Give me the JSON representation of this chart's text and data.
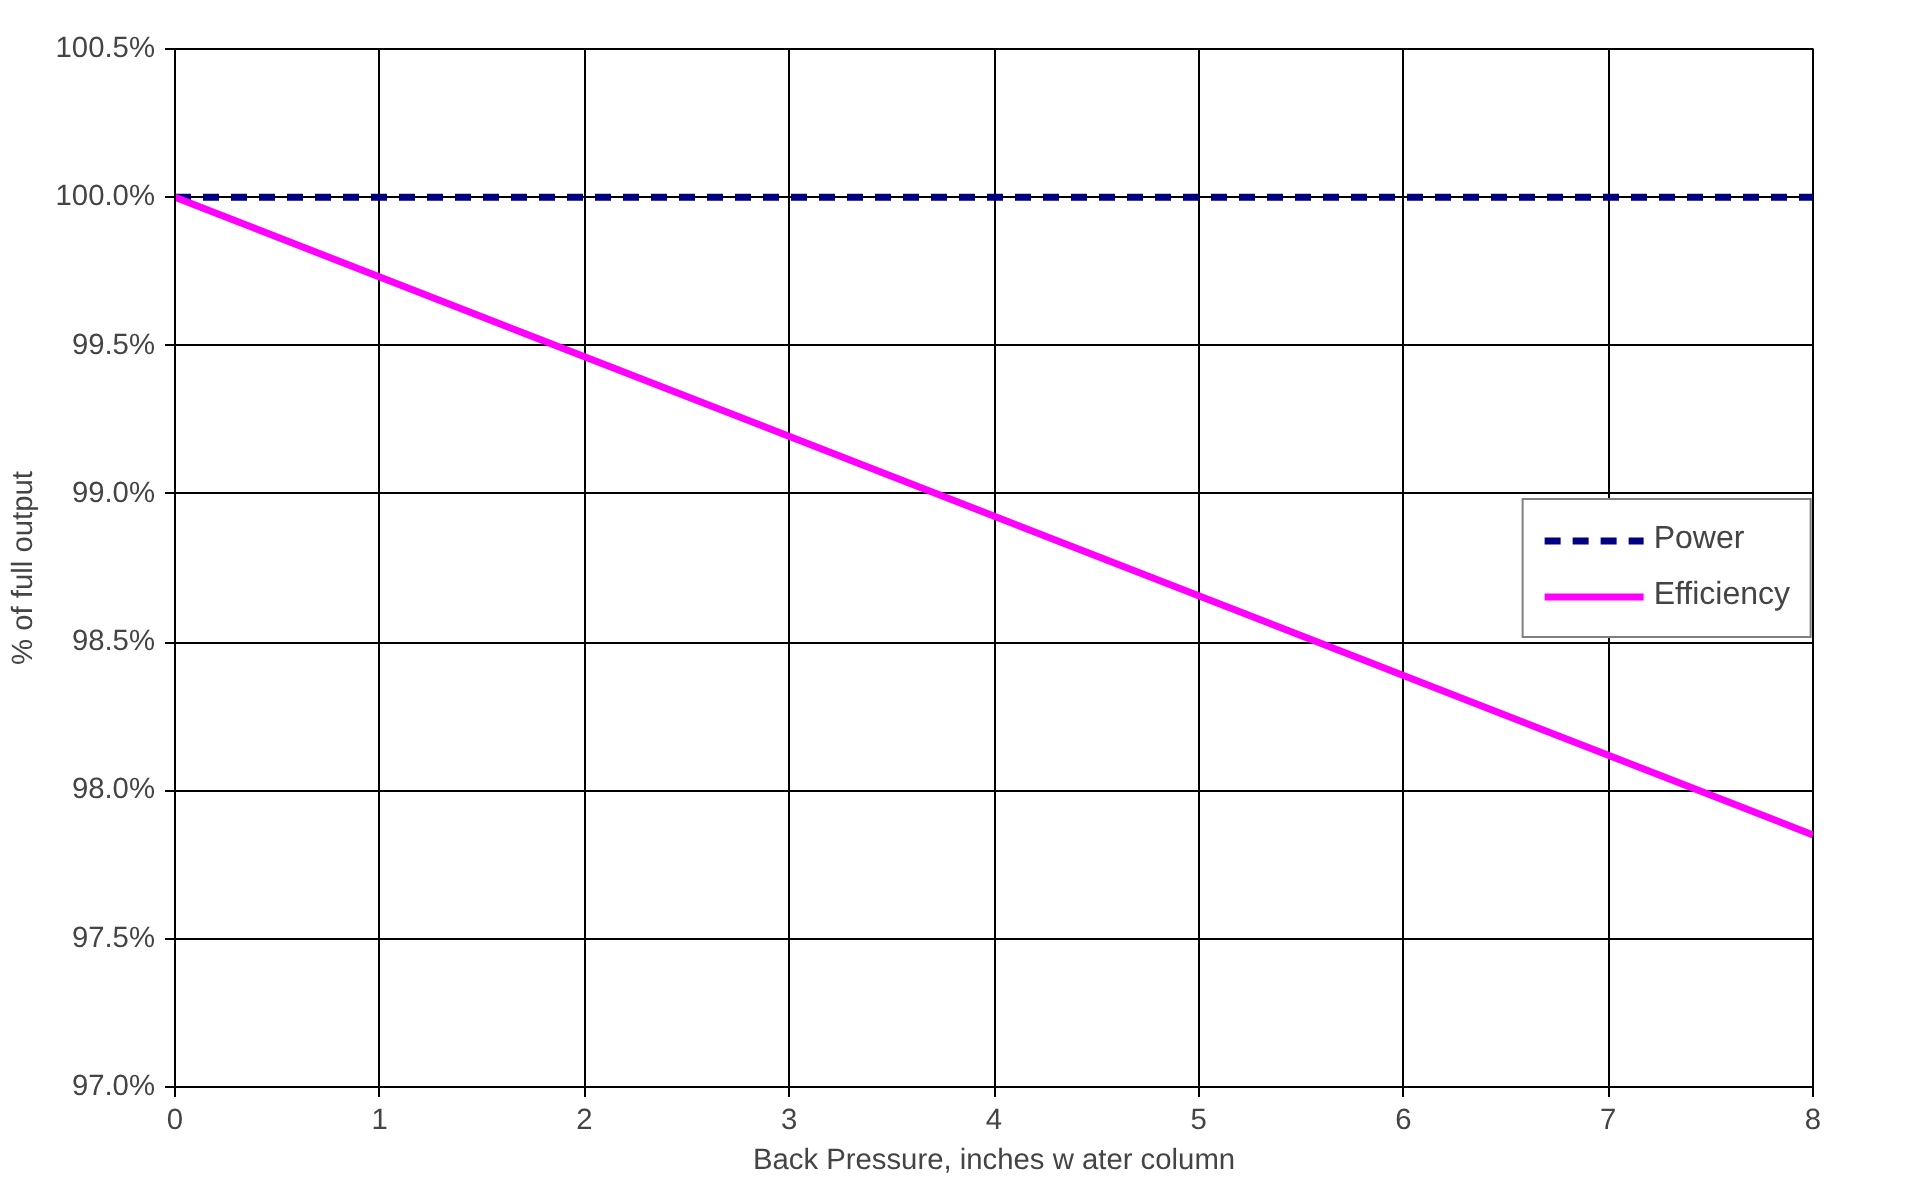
{
  "chart_data": {
    "type": "line",
    "xlabel": "Back Pressure, inches w ater column",
    "ylabel": "% of full output",
    "x": [
      0,
      8
    ],
    "series": [
      {
        "name": "Power",
        "color": "#000080",
        "values": [
          100.0,
          100.0
        ],
        "line_style": "dashed"
      },
      {
        "name": "Efficiency",
        "color": "#ff00ff",
        "values": [
          100.0,
          97.85
        ],
        "line_style": "solid"
      }
    ],
    "xlim": [
      0,
      8
    ],
    "xticks": [
      0,
      1,
      2,
      3,
      4,
      5,
      6,
      7,
      8
    ],
    "ylim": [
      97.0,
      100.5
    ],
    "yticks": [
      {
        "value": 97.0,
        "label": "97.0%"
      },
      {
        "value": 97.5,
        "label": "97.5%"
      },
      {
        "value": 98.0,
        "label": "98.0%"
      },
      {
        "value": 98.5,
        "label": "98.5%"
      },
      {
        "value": 99.0,
        "label": "99.0%"
      },
      {
        "value": 99.5,
        "label": "99.5%"
      },
      {
        "value": 100.0,
        "label": "100.0%"
      },
      {
        "value": 100.5,
        "label": "100.5%"
      }
    ],
    "grid": true,
    "legend": "right",
    "marker": "none"
  }
}
